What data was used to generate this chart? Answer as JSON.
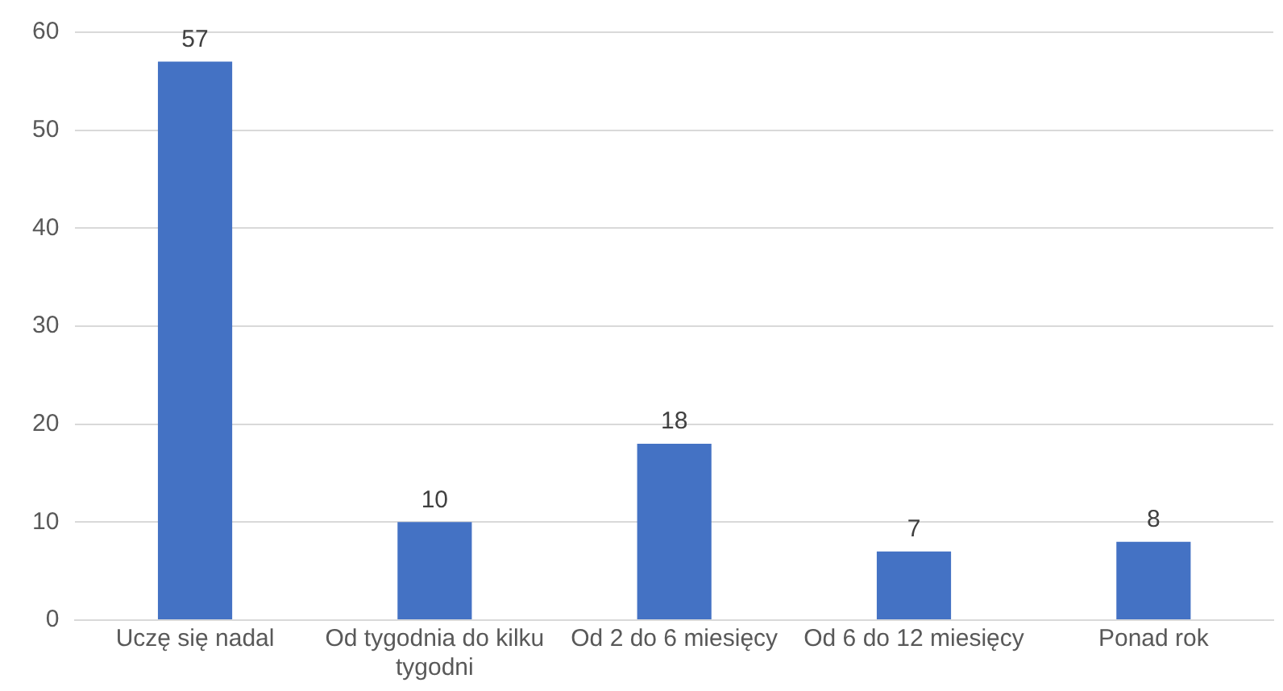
{
  "chart_data": {
    "type": "bar",
    "categories": [
      "Uczę się nadal",
      "Od tygodnia do kilku tygodni",
      "Od 2 do 6 miesięcy",
      "Od 6 do 12 miesięcy",
      "Ponad rok"
    ],
    "values": [
      57,
      10,
      18,
      7,
      8
    ],
    "color": "#4472c4",
    "ylim": [
      0,
      60
    ],
    "yticks": [
      0,
      10,
      20,
      30,
      40,
      50,
      60
    ],
    "grid": "y",
    "legend": false,
    "data_labels": true
  }
}
